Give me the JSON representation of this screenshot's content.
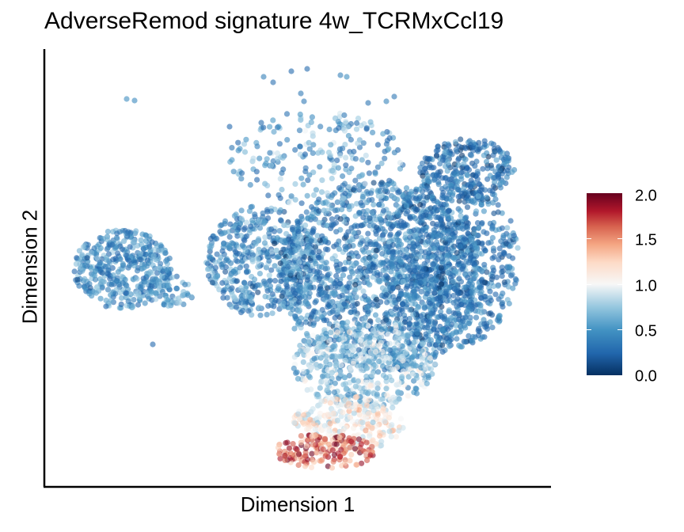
{
  "chart_data": {
    "type": "scatter",
    "title": "AdverseRemod signature 4w_TCRMxCcl19",
    "xlabel": "Dimension 1",
    "ylabel": "Dimension 2",
    "axis_ticks_shown": false,
    "grid": false,
    "point_opacity": 0.6,
    "color_scale": {
      "name": "RdBu (reversed)",
      "min": 0.0,
      "max": 2.0,
      "ticks": [
        "0.0",
        "0.5",
        "1.0",
        "1.5",
        "2.0"
      ],
      "low_color": "#053061",
      "mid_color": "#f7f7f7",
      "high_color": "#67001f"
    },
    "legend_placement": "right",
    "clusters": [
      {
        "region": "left",
        "value_range": [
          0.2,
          0.8
        ]
      },
      {
        "region": "main body",
        "value_range": [
          0.1,
          0.9
        ]
      },
      {
        "region": "bottom tip",
        "value_range": [
          1.2,
          2.0
        ]
      }
    ]
  }
}
